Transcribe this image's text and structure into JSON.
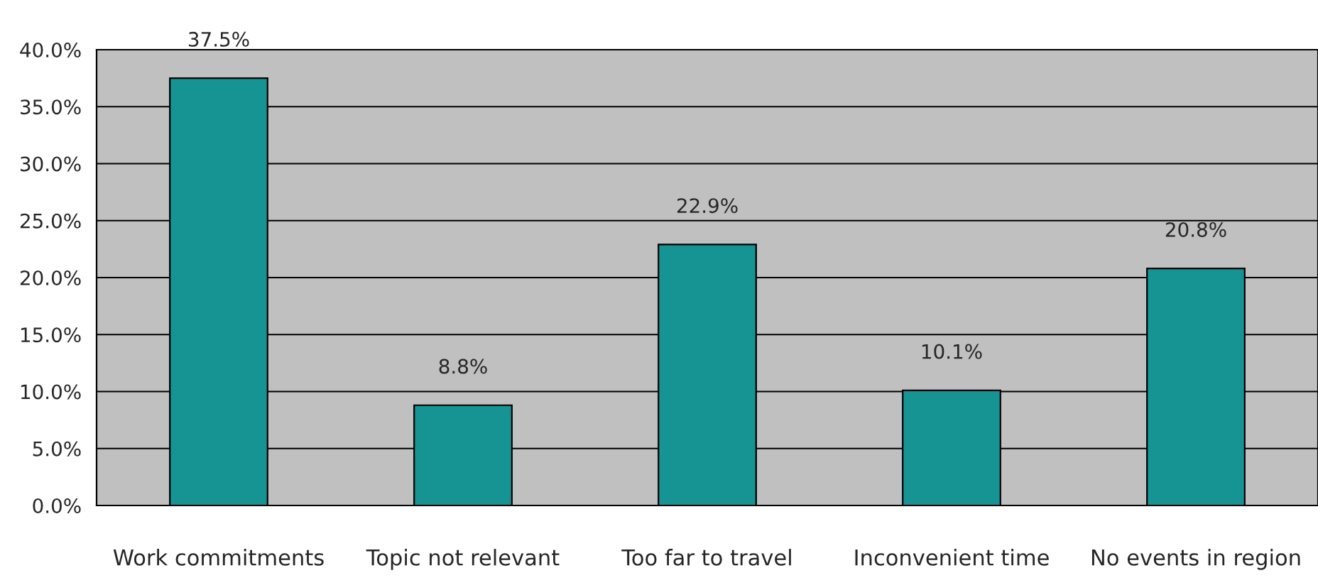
{
  "chart_data": {
    "type": "bar",
    "categories": [
      "Work commitments",
      "Topic not relevant",
      "Too far to travel",
      "Inconvenient time",
      "No events in region"
    ],
    "values": [
      37.5,
      8.8,
      22.9,
      10.1,
      20.8
    ],
    "value_labels": [
      "37.5%",
      "8.8%",
      "22.9%",
      "10.1%",
      "20.8%"
    ],
    "color": "#169393",
    "ylim": [
      0,
      40
    ],
    "yticks": [
      {
        "value": 0,
        "label": "0.0%"
      },
      {
        "value": 5,
        "label": "5.0%"
      },
      {
        "value": 10,
        "label": "10.0%"
      },
      {
        "value": 15,
        "label": "15.0%"
      },
      {
        "value": 20,
        "label": "20.0%"
      },
      {
        "value": 25,
        "label": "25.0%"
      },
      {
        "value": 30,
        "label": "30.0%"
      },
      {
        "value": 35,
        "label": "35.0%"
      },
      {
        "value": 40,
        "label": "40.0%"
      }
    ],
    "grid": "y"
  }
}
